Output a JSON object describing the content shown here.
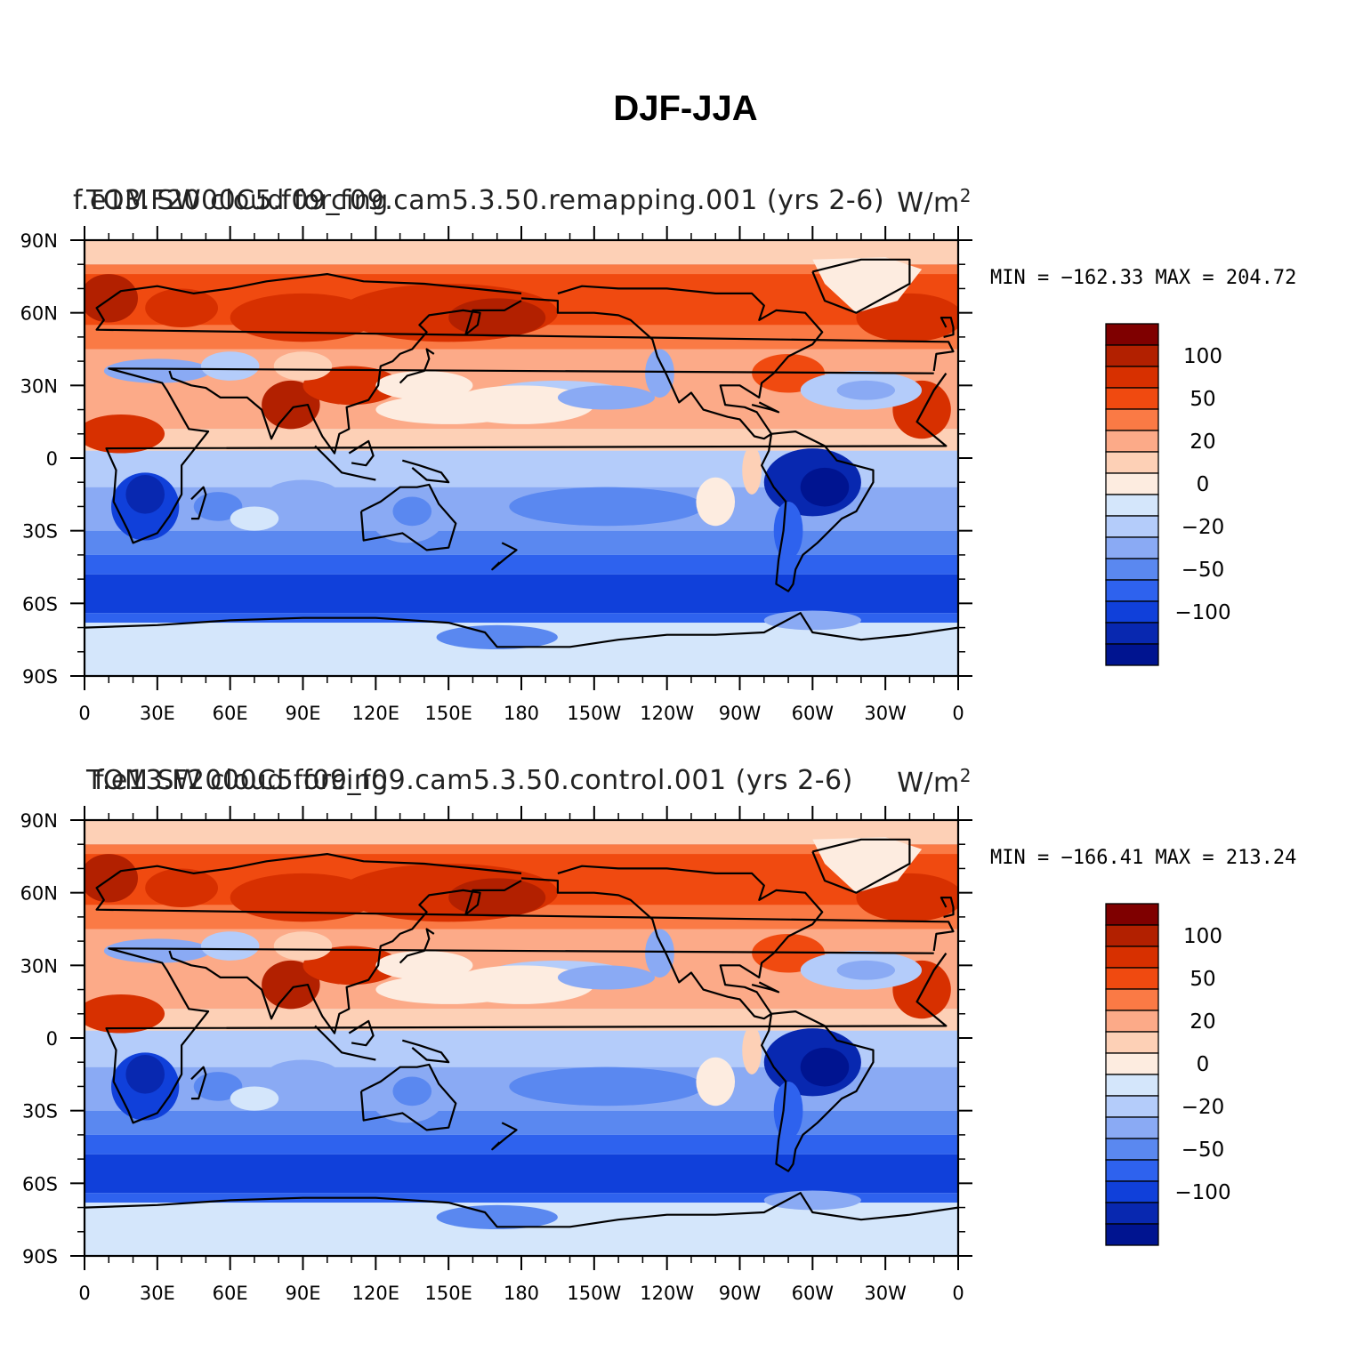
{
  "title": "DJF-JJA",
  "panels": [
    {
      "id": "top",
      "left_string": "f.e13.F2000C5.f09_f09.cam5.3.50.remapping.001 (yrs 2-6)",
      "center_string": "TOM SW cloud forcing",
      "units": "W/m",
      "units_exp": "2",
      "min_label": "MIN = −162.33",
      "max_label": "MAX = 204.72"
    },
    {
      "id": "bottom",
      "left_string": "f.e13.F2000C5.f09_f09.cam5.3.50.control.001 (yrs 2-6)",
      "center_string": "TOM SW cloud forcing",
      "units": "W/m",
      "units_exp": "2",
      "min_label": "MIN = −166.41",
      "max_label": "MAX = 213.24"
    }
  ],
  "lat_ticks": [
    "90N",
    "60N",
    "30N",
    "0",
    "30S",
    "60S",
    "90S"
  ],
  "lon_ticks": [
    "0",
    "30E",
    "60E",
    "90E",
    "120E",
    "150E",
    "180",
    "150W",
    "120W",
    "90W",
    "60W",
    "30W",
    "0"
  ],
  "colorbar": {
    "colors": [
      "#7f0000",
      "#b22000",
      "#d73000",
      "#f04a10",
      "#fa7a45",
      "#fcaa88",
      "#fdd0b6",
      "#fdece0",
      "#d4e6fb",
      "#b4ccfa",
      "#8aaaf4",
      "#5a88f0",
      "#2e62ee",
      "#1040da",
      "#0828b0",
      "#001490"
    ],
    "labels": [
      "100",
      "50",
      "20",
      "0",
      "−20",
      "−50",
      "−100"
    ]
  },
  "chart_data": {
    "type": "heatmap",
    "title": "DJF-JJA",
    "variable": "TOM SW cloud forcing",
    "units": "W/m^2",
    "projection": "cylindrical equidistant, global",
    "xrange": [
      "0",
      "0 (360)"
    ],
    "yrange": [
      "90S",
      "90N"
    ],
    "contour_levels": [
      -125,
      -100,
      -75,
      -50,
      -35,
      -20,
      -10,
      0,
      10,
      20,
      35,
      50,
      75,
      100,
      125
    ],
    "panels": [
      {
        "case": "f.e13.F2000C5.f09_f09.cam5.3.50.remapping.001 (yrs 2-6)",
        "min": -162.33,
        "max": 204.72
      },
      {
        "case": "f.e13.F2000C5.f09_f09.cam5.3.50.control.001 (yrs 2-6)",
        "min": -166.41,
        "max": 213.24
      }
    ]
  }
}
